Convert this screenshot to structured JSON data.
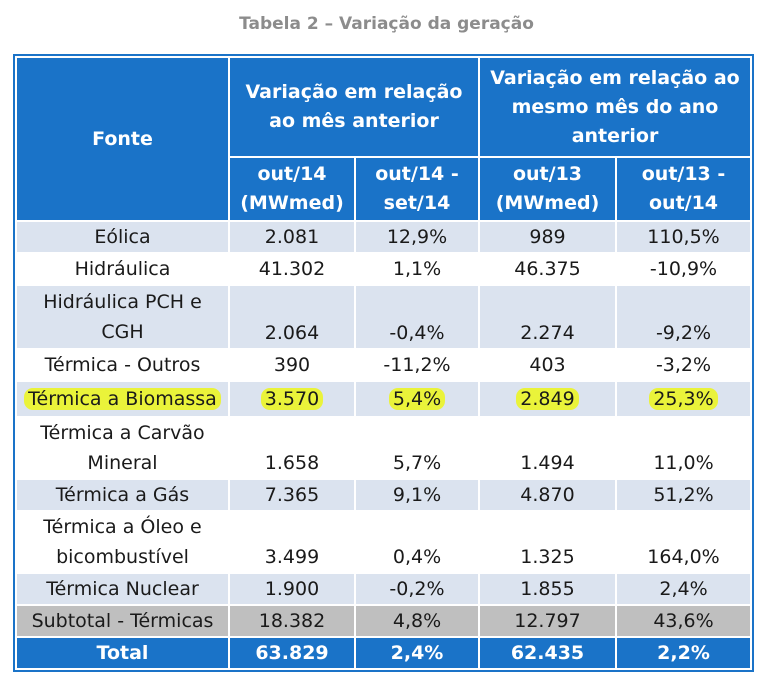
{
  "caption": "Tabela 2 – Variação da geração",
  "header": {
    "fonte": "Fonte",
    "group1": "Variação em relação ao mês anterior",
    "group2": "Variação em relação ao mesmo mês do ano anterior",
    "col1": "out/14 (MWmed)",
    "col2": "out/14 - set/14",
    "col3": "out/13 (MWmed)",
    "col4": "out/13 - out/14"
  },
  "rows": [
    {
      "fonte": "Eólica",
      "c1": "2.081",
      "c2": "12,9%",
      "c3": "989",
      "c4": "110,5%"
    },
    {
      "fonte": "Hidráulica",
      "c1": "41.302",
      "c2": "1,1%",
      "c3": "46.375",
      "c4": "-10,9%"
    },
    {
      "fonte": "Hidráulica PCH e CGH",
      "c1": "2.064",
      "c2": "-0,4%",
      "c3": "2.274",
      "c4": "-9,2%"
    },
    {
      "fonte": "Térmica - Outros",
      "c1": "390",
      "c2": "-11,2%",
      "c3": "403",
      "c4": "-3,2%"
    },
    {
      "fonte": "Térmica a Biomassa",
      "c1": "3.570",
      "c2": "5,4%",
      "c3": "2.849",
      "c4": "25,3%"
    },
    {
      "fonte": "Térmica a Carvão Mineral",
      "c1": "1.658",
      "c2": "5,7%",
      "c3": "1.494",
      "c4": "11,0%"
    },
    {
      "fonte": "Térmica a Gás",
      "c1": "7.365",
      "c2": "9,1%",
      "c3": "4.870",
      "c4": "51,2%"
    },
    {
      "fonte": "Térmica a Óleo e bicombustível",
      "c1": "3.499",
      "c2": "0,4%",
      "c3": "1.325",
      "c4": "164,0%"
    },
    {
      "fonte": "Térmica Nuclear",
      "c1": "1.900",
      "c2": "-0,2%",
      "c3": "1.855",
      "c4": "2,4%"
    },
    {
      "fonte": "Subtotal - Térmicas",
      "c1": "18.382",
      "c2": "4,8%",
      "c3": "12.797",
      "c4": "43,6%"
    },
    {
      "fonte": "Total",
      "c1": "63.829",
      "c2": "2,4%",
      "c3": "62.435",
      "c4": "2,2%"
    }
  ],
  "colors": {
    "header_blue": "#1a73c8",
    "row_light": "#dbe3ef",
    "subtotal_grey": "#bfbfbf",
    "highlight": "#eaf33a"
  }
}
